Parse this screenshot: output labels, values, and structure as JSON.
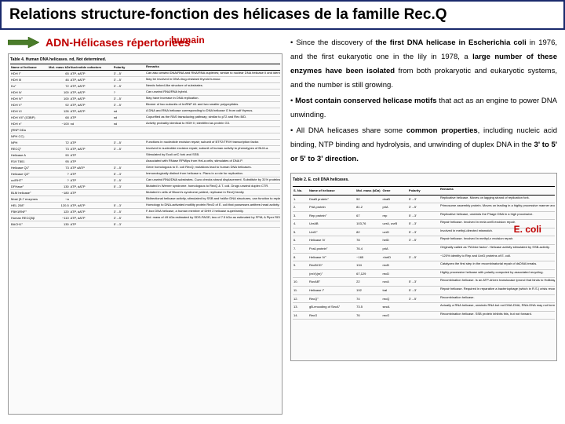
{
  "title": "Relations structure-fonction des hélicases de la famille Rec.Q",
  "subtitle": "ADN-Hélicases répertoriées",
  "humain_label": "humain",
  "ecoli_label": "E. coli",
  "colors": {
    "title_border": "#1a2a6c",
    "accent_red": "#c00000",
    "arrow_fill": "#4a7c2a",
    "arrow_stroke": "#2a5c0a",
    "bg": "#ffffff"
  },
  "body": {
    "p1a": "• Since the discovery of ",
    "p1b": "the first DNA helicase in Escherichia coli",
    "p1c": " in 1976, and the first eukaryotic one in the lily in 1978, a ",
    "p1d": "large number of these enzymes have been isolated",
    "p1e": " from both prokaryotic and eukaryotic systems, and the number is still growing.",
    "p2a": "• ",
    "p2b": "Most contain conserved helicase motifs",
    "p2c": " that act as an engine to power DNA unwinding.",
    "p3a": "• All DNA helicases share some ",
    "p3b": "common properties",
    "p3c": ", including nucleic acid binding, NTP binding and hydrolysis, and unwinding of duplex DNA in the ",
    "p3d": "3' to 5' or 5' to 3' direction."
  },
  "human_table": {
    "caption": "Table 4. Human DNA helicases. nd, Not determined.",
    "head": [
      "Name of helicase",
      "Mol. mass kDa",
      "Nucleotide cofactors",
      "Polarity",
      "Remarks"
    ],
    "rows": [
      [
        "HDH I°",
        "65",
        "ATP, dATP",
        "3'→5'",
        "Can also unwind DNA/RNA and RNA/RNA duplexes; similar to nuclear DNA helicase II and identical to RNA strand with Ku70/Ku80 and has reconstitution."
      ],
      [
        "HDH III",
        "46",
        "ATP, dATP",
        "3'→5'",
        "May be involved in DNA drug-resistant thyroid tumour."
      ],
      [
        "Ku°",
        "72",
        "ATP, dATP",
        "3'→5'",
        "Needs forked-like structure of substrates."
      ],
      [
        "HDH IV",
        "100",
        "ATP, dATP",
        "?",
        "Can unwind RNA/RNA hybrid."
      ],
      [
        "HDH IV°",
        "100",
        "ATP, dATP",
        "3'→5'",
        "May have increase in DNA replication."
      ],
      [
        "HDH V°",
        "92",
        "ATP, dATP",
        "3'→5'",
        "Biomer of two subunits of hnRNP A1 and two smaller polypeptides."
      ],
      [
        "HDH VI",
        "128",
        "ATP, dATP",
        "nd",
        "A DNA and RNA helicase corresponding to DNA helicase G from calf thymus."
      ],
      [
        "HDH VII° (G3BP)",
        "68",
        "ATP",
        "nd",
        "Copurified as the RAS transducing pathway; similar to p72 and Rec B/D."
      ],
      [
        "HDH n°",
        "~100",
        "nd",
        "nd",
        "Activity probably identical to HDH II; identified as protein G3."
      ],
      [
        "(RNP DDa",
        "",
        "",
        "",
        ""
      ],
      [
        "NPH CC)",
        "",
        "",
        "",
        ""
      ],
      [
        "NPH",
        "72",
        "ATP",
        "3'→5'",
        "Functions in nucleotide excision repair; subunit of BTF2/TFIIH transcription factor."
      ],
      [
        "RECQ°",
        "73",
        "ATP, dATP",
        "3'→5'",
        "Involved in nucleotide excision repair; subunit of human activity to phenotypes of BLM-a."
      ],
      [
        "Helicase A",
        "90",
        "ATP",
        "",
        "Stimulated by Ecoli oriC fork and SSB."
      ],
      [
        "R19 T801",
        "95",
        "ATP",
        "",
        "Associated with RNase RPMlps from HeLa cells; stimulates of DNA P."
      ],
      [
        "Helicase Q1°",
        "73",
        "ATP dATP",
        "3'→5'",
        "Gene homologous to E. coli RecQ; mutations lead to human DNA helicases."
      ],
      [
        "Helicase QZ°",
        "?",
        "ATP",
        "5'→3'",
        "Immunologically distinct from helicase s. Plans in a role for replication."
      ],
      [
        "cc/RHT°",
        "?",
        "ATP",
        "3'→5'",
        "Can unwind RNA/DNA substrates. Cuzo checks strand displacement. Substitute by 31% proteins from enzyme DNA very long duplex DNA."
      ],
      [
        "DFHase°",
        "130",
        "ATP, dATP",
        "5'→3'",
        "Mutated in Werner syndrome. homologous to RecQ & T. coli. Drugs unwind duplex CTR."
      ],
      [
        "BLM helicase°",
        "~180",
        "ATP",
        "",
        "Mutated in cells of Bloom's syndrome patient, replicase in RecQ family."
      ],
      [
        "Most (5-7 enzymes",
        "~a",
        "",
        "",
        "Bidirectional helicase activity, stimulated by SSB and hsMcr DNA structures, can function to replacing fashion."
      ],
      [
        "HEL 208°",
        "120.5",
        "ATP, dATP",
        "5'→3'",
        "Homology to DNA-activated motility protein RecD of E. coli that possesses antitree-head activity."
      ],
      [
        "FBH1RNF°",
        "120",
        "ATP, dATP",
        "3'→5'",
        "F-box DNA helicase, a human member of DHH 2 helicase superfamily."
      ],
      [
        "Human RECQ5β",
        "~110",
        "ATP, dATP",
        "3'→5'",
        "Mol. mass of 49 kDa estimated by SDS-PAGE; two of 7.5 kDa as estimated by FPM; A Piper RECT type activate from SF homologue, RECQs. Involved in DSB result and tele polymer suppressor."
      ],
      [
        "BACH1°",
        "130",
        "ATP",
        "5'→3'",
        ""
      ]
    ]
  },
  "ecoli_table": {
    "caption": "Table 2. E. coli DNA helicases.",
    "head": [
      "S. No.",
      "Name of helicase",
      "Mol. mass (kDa)",
      "Gene",
      "Polarity",
      "Remarks"
    ],
    "rows": [
      [
        "1.",
        "DnaB protein°",
        "52",
        "dnaB",
        "5'→3'",
        "Replicative helicase. Moves on lagging strand of replication fork."
      ],
      [
        "2.",
        "PriA protein",
        "81.2",
        "priA",
        "3'→5'",
        "Primosome assembly protein. Moves on leading in a highly processive manner and initiator."
      ],
      [
        "3.",
        "Rep protein°",
        "67",
        "rep",
        "5'→3'",
        "Replicative helicase, unwinds the Phage DNA in a high processive."
      ],
      [
        "4.",
        "UvrAB",
        "103,76",
        "uvrA, uvrB",
        "5'→3'",
        "Repair helicase. Involved in mela uvrB excision repair."
      ],
      [
        "5.",
        "UvrD°",
        "82",
        "uvrD",
        "5'→3'",
        "Involved in methyl-directed mismatch."
      ],
      [
        "6.",
        "Helicase IV",
        "78",
        "helD",
        "3'→5'",
        "Repair helicase. Involved in methyl-x excision repair."
      ],
      [
        "7.",
        "PcrA protein°",
        "76.4",
        "priA",
        "",
        "Originally called as 'PA lbke factor'. Helicase activity stimulated by SSB-activity."
      ],
      [
        "8.",
        "Helicase IV°",
        "~165",
        "×helD",
        "3'→5'",
        "~120% identity to Rep and UvrD proteins of E. coli."
      ],
      [
        "9.",
        "RecBCD°",
        "134",
        "recB",
        "",
        "Catalyzes the first step in the recombinatorial repair of dsDNA breaks."
      ],
      [
        "",
        "(exV)(m)°",
        "67,129",
        "recD",
        "",
        "Highly processive helicase with polarity computed by associated recycling."
      ],
      [
        "10.",
        "RuvAB°",
        "22",
        "ruvA",
        "5'→3'",
        "Recombination helicase. Is an ATP-driven translocase iproncl that binds to Holliday junctions, promotes branch migration."
      ],
      [
        "11.",
        "Helicase I°",
        "192",
        "traI",
        "5'→3'",
        "Repair helicase. Required in reparative a bacteriophage (which in R.S.) crisis recombination. Unwinds DNA-by-step Transfer."
      ],
      [
        "12.",
        "RecQ°",
        "74",
        "recQ",
        "3'→5'",
        "Recombination helicase."
      ],
      [
        "13.",
        "gB-encoding of SecA°",
        "73.5",
        "secA",
        "",
        "Actually a RNA helicase, unwinds RNA but not DNA-DNA, RNA-DNA may not formulate tiyave fft forward."
      ],
      [
        "14.",
        "RecG",
        "76",
        "recG",
        "",
        "Recombination helicase. SSB protein inhibits this, but not forward."
      ]
    ]
  }
}
